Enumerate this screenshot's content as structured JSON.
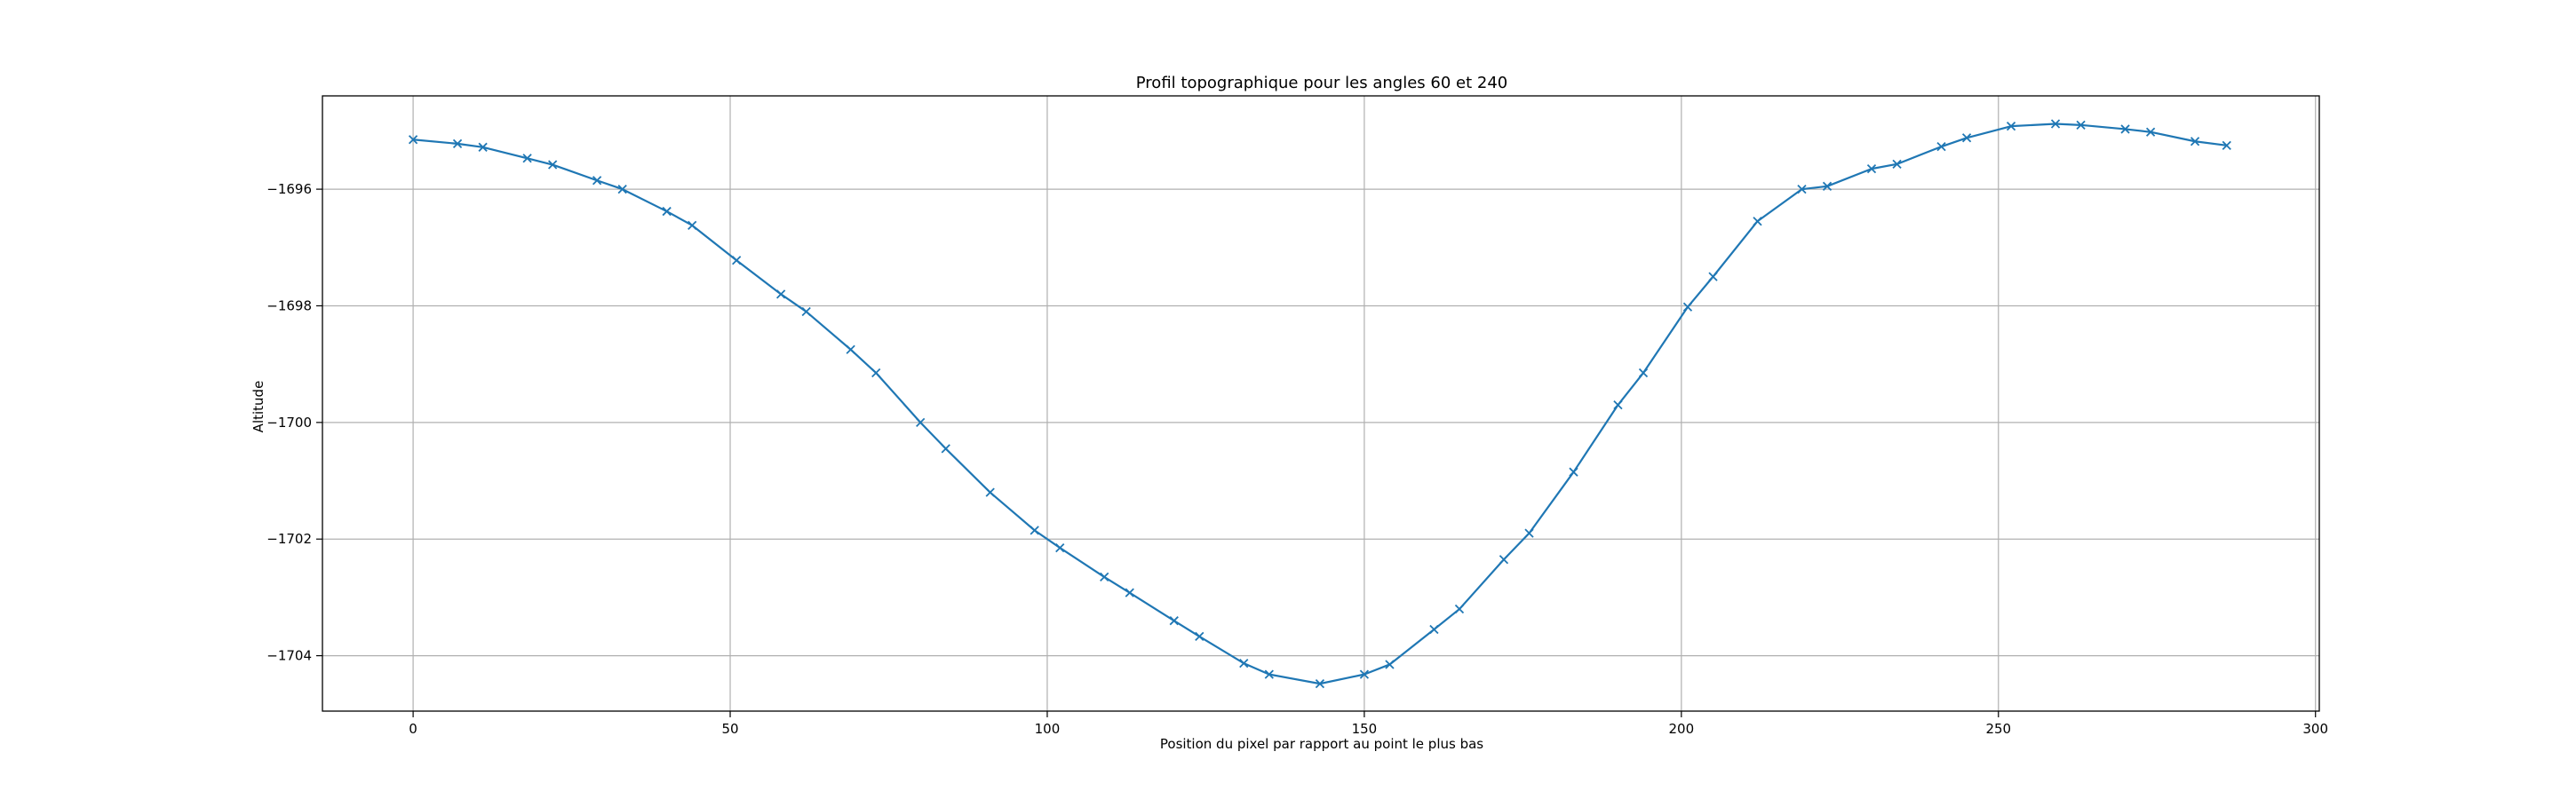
{
  "chart_data": {
    "type": "line",
    "title": "Profil topographique pour les angles 60 et 240",
    "xlabel": "Position du pixel par rapport au point le plus bas",
    "ylabel": "Altitude",
    "xlim": [
      -14.3,
      300.6
    ],
    "ylim": [
      -1704.95,
      -1694.4
    ],
    "xticks": [
      0,
      50,
      100,
      150,
      200,
      250,
      300
    ],
    "xtick_labels": [
      "0",
      "50",
      "100",
      "150",
      "200",
      "250",
      "300"
    ],
    "yticks": [
      -1696,
      -1698,
      -1700,
      -1702,
      -1704
    ],
    "ytick_labels": [
      "−1696",
      "−1698",
      "−1700",
      "−1702",
      "−1704"
    ],
    "grid": true,
    "marker": "x",
    "colors": {
      "series": "#1f77b4",
      "grid": "#b0b0b0",
      "axes": "#000000"
    },
    "series": [
      {
        "x": [
          0,
          7,
          11,
          18,
          22,
          29,
          33,
          40,
          44,
          51,
          58,
          62,
          69,
          73,
          80,
          84,
          91,
          98,
          102,
          109,
          113,
          120,
          124,
          131,
          135,
          143,
          150,
          154,
          161,
          165,
          172,
          176,
          183,
          190,
          194,
          201,
          205,
          212,
          219,
          223,
          230,
          234,
          241,
          245,
          252,
          259,
          263,
          270,
          274,
          281,
          286
        ],
        "y": [
          -1695.15,
          -1695.22,
          -1695.28,
          -1695.47,
          -1695.58,
          -1695.85,
          -1696.0,
          -1696.38,
          -1696.62,
          -1697.22,
          -1697.8,
          -1698.1,
          -1698.75,
          -1699.15,
          -1700.0,
          -1700.45,
          -1701.2,
          -1701.85,
          -1702.15,
          -1702.65,
          -1702.92,
          -1703.4,
          -1703.67,
          -1704.13,
          -1704.32,
          -1704.48,
          -1704.32,
          -1704.15,
          -1703.55,
          -1703.2,
          -1702.35,
          -1701.9,
          -1700.85,
          -1699.7,
          -1699.15,
          -1698.02,
          -1697.5,
          -1696.55,
          -1696.0,
          -1695.95,
          -1695.65,
          -1695.57,
          -1695.27,
          -1695.12,
          -1694.92,
          -1694.88,
          -1694.9,
          -1694.97,
          -1695.02,
          -1695.18,
          -1695.25
        ]
      }
    ]
  }
}
